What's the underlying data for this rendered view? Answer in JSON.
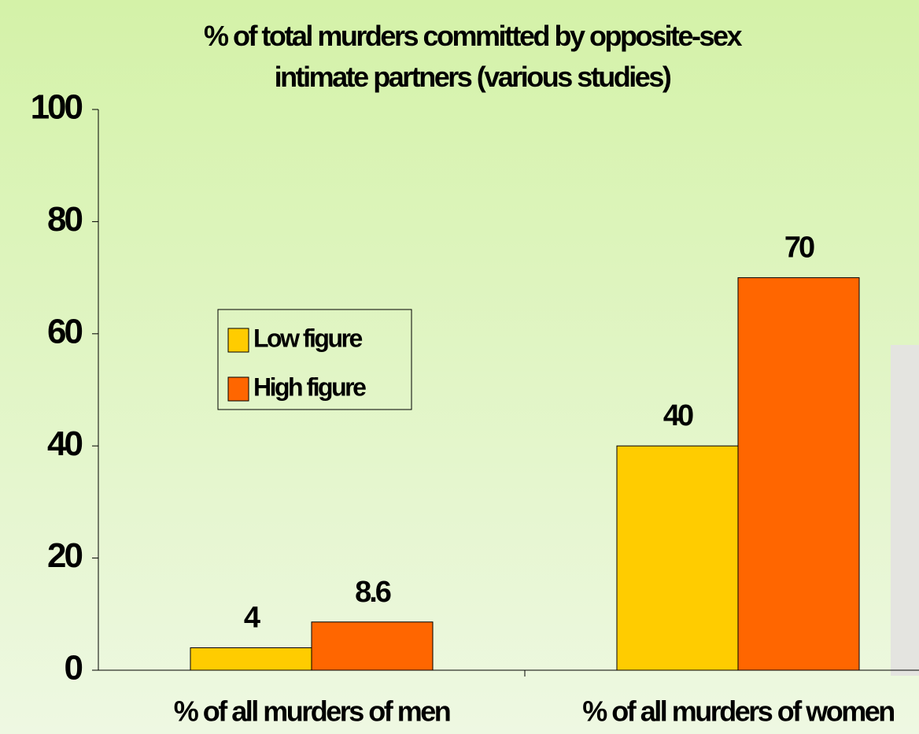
{
  "chart_data": {
    "type": "bar",
    "title": "% of total murders committed by opposite-sex intimate partners (various studies)",
    "categories": [
      "% of all murders of men",
      "% of all murders of women"
    ],
    "series": [
      {
        "name": "Low figure",
        "color": "#ffcc00",
        "values": [
          4,
          40
        ]
      },
      {
        "name": "High figure",
        "color": "#ff6600",
        "values": [
          8.6,
          70
        ]
      }
    ],
    "ylim": [
      0,
      100
    ],
    "yticks": [
      0,
      20,
      40,
      60,
      80,
      100
    ]
  }
}
